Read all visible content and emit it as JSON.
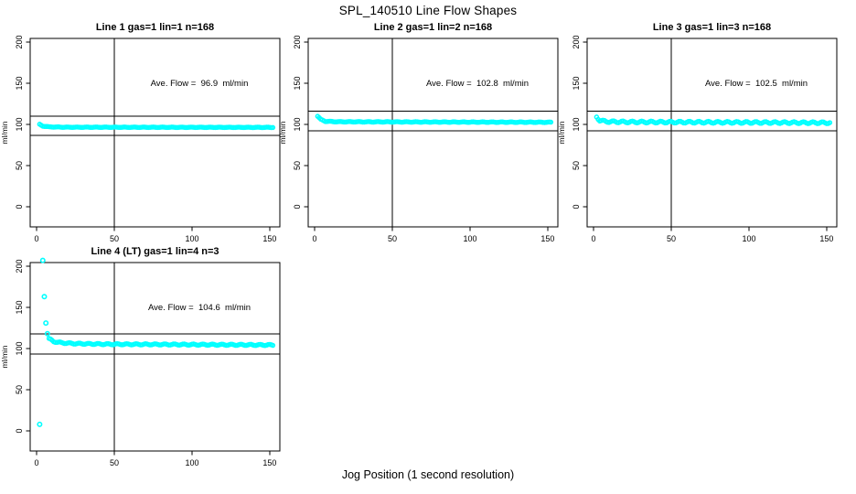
{
  "header": {
    "title": "SPL_140510  Line Flow Shapes"
  },
  "footer": {
    "xlabel": "Jog Position (1 second resolution)"
  },
  "colors": {
    "point": "#00FFFF",
    "axis": "#000000",
    "background": "#FFFFFF"
  },
  "chart_data": [
    {
      "type": "scatter",
      "title": "Line 1 gas=1 lin=1 n=168",
      "annotation": "Ave. Flow =  96.9  ml/min",
      "ave_flow_ml_min": 96.9,
      "ylabel": "ml/min",
      "x_ticks": [
        0,
        50,
        100,
        150
      ],
      "y_ticks": [
        0,
        50,
        100,
        150,
        200
      ],
      "xlim": [
        -4.1,
        156.5
      ],
      "ylim": [
        -24.4,
        204.4
      ],
      "grid": false,
      "ref_lines": {
        "upper": 110,
        "lower": 86.5,
        "vertical_x": 50
      },
      "band": {
        "x_start": 2,
        "x_end": 152,
        "step": 1,
        "jitter": 0.25,
        "anchors": [
          [
            2,
            100
          ],
          [
            4,
            98
          ],
          [
            8,
            97
          ],
          [
            20,
            96.6
          ],
          [
            152,
            96.4
          ]
        ]
      },
      "extra_points": []
    },
    {
      "type": "scatter",
      "title": "Line 2 gas=1 lin=2 n=168",
      "annotation": "Ave. Flow =  102.8  ml/min",
      "ave_flow_ml_min": 102.8,
      "ylabel": "ml/min",
      "x_ticks": [
        0,
        50,
        100,
        150
      ],
      "y_ticks": [
        0,
        50,
        100,
        150,
        200
      ],
      "xlim": [
        -4.1,
        156.5
      ],
      "ylim": [
        -24.4,
        204.4
      ],
      "grid": false,
      "ref_lines": {
        "upper": 116,
        "lower": 92,
        "vertical_x": 50
      },
      "band": {
        "x_start": 2,
        "x_end": 152,
        "step": 1,
        "jitter": 0.35,
        "anchors": [
          [
            2,
            110
          ],
          [
            4,
            106
          ],
          [
            7,
            103.8
          ],
          [
            15,
            103.2
          ],
          [
            152,
            102.6
          ]
        ]
      },
      "extra_points": []
    },
    {
      "type": "scatter",
      "title": "Line 3 gas=1 lin=3 n=168",
      "annotation": "Ave. Flow =  102.5  ml/min",
      "ave_flow_ml_min": 102.5,
      "ylabel": "ml/min",
      "x_ticks": [
        0,
        50,
        100,
        150
      ],
      "y_ticks": [
        0,
        50,
        100,
        150,
        200
      ],
      "xlim": [
        -4.1,
        156.5
      ],
      "ylim": [
        -24.4,
        204.4
      ],
      "grid": false,
      "ref_lines": {
        "upper": 116,
        "lower": 92,
        "vertical_x": 50
      },
      "band": {
        "x_start": 2,
        "x_end": 152,
        "step": 1,
        "jitter": 1.1,
        "anchors": [
          [
            2,
            109
          ],
          [
            4,
            105
          ],
          [
            8,
            103.5
          ],
          [
            20,
            103
          ],
          [
            152,
            102
          ]
        ]
      },
      "extra_points": []
    },
    {
      "type": "scatter",
      "title": "Line 4 (LT) gas=1 lin=4 n=3",
      "annotation": "Ave. Flow =  104.6  ml/min",
      "ave_flow_ml_min": 104.6,
      "ylabel": "ml/min",
      "x_ticks": [
        0,
        50,
        100,
        150
      ],
      "y_ticks": [
        0,
        50,
        100,
        150,
        200
      ],
      "xlim": [
        -4.1,
        156.5
      ],
      "ylim": [
        -24.4,
        204.4
      ],
      "grid": false,
      "ref_lines": {
        "upper": 117.5,
        "lower": 93.5,
        "vertical_x": 50
      },
      "band": {
        "x_start": 8,
        "x_end": 152,
        "step": 1,
        "jitter": 0.7,
        "anchors": [
          [
            8,
            112
          ],
          [
            11,
            108.5
          ],
          [
            16,
            107
          ],
          [
            25,
            106
          ],
          [
            45,
            105.3
          ],
          [
            80,
            105
          ],
          [
            120,
            104.6
          ],
          [
            152,
            104.3
          ]
        ]
      },
      "extra_points": [
        [
          2,
          8
        ],
        [
          4,
          207
        ],
        [
          5,
          163
        ],
        [
          6,
          131
        ],
        [
          7,
          118
        ]
      ]
    }
  ]
}
